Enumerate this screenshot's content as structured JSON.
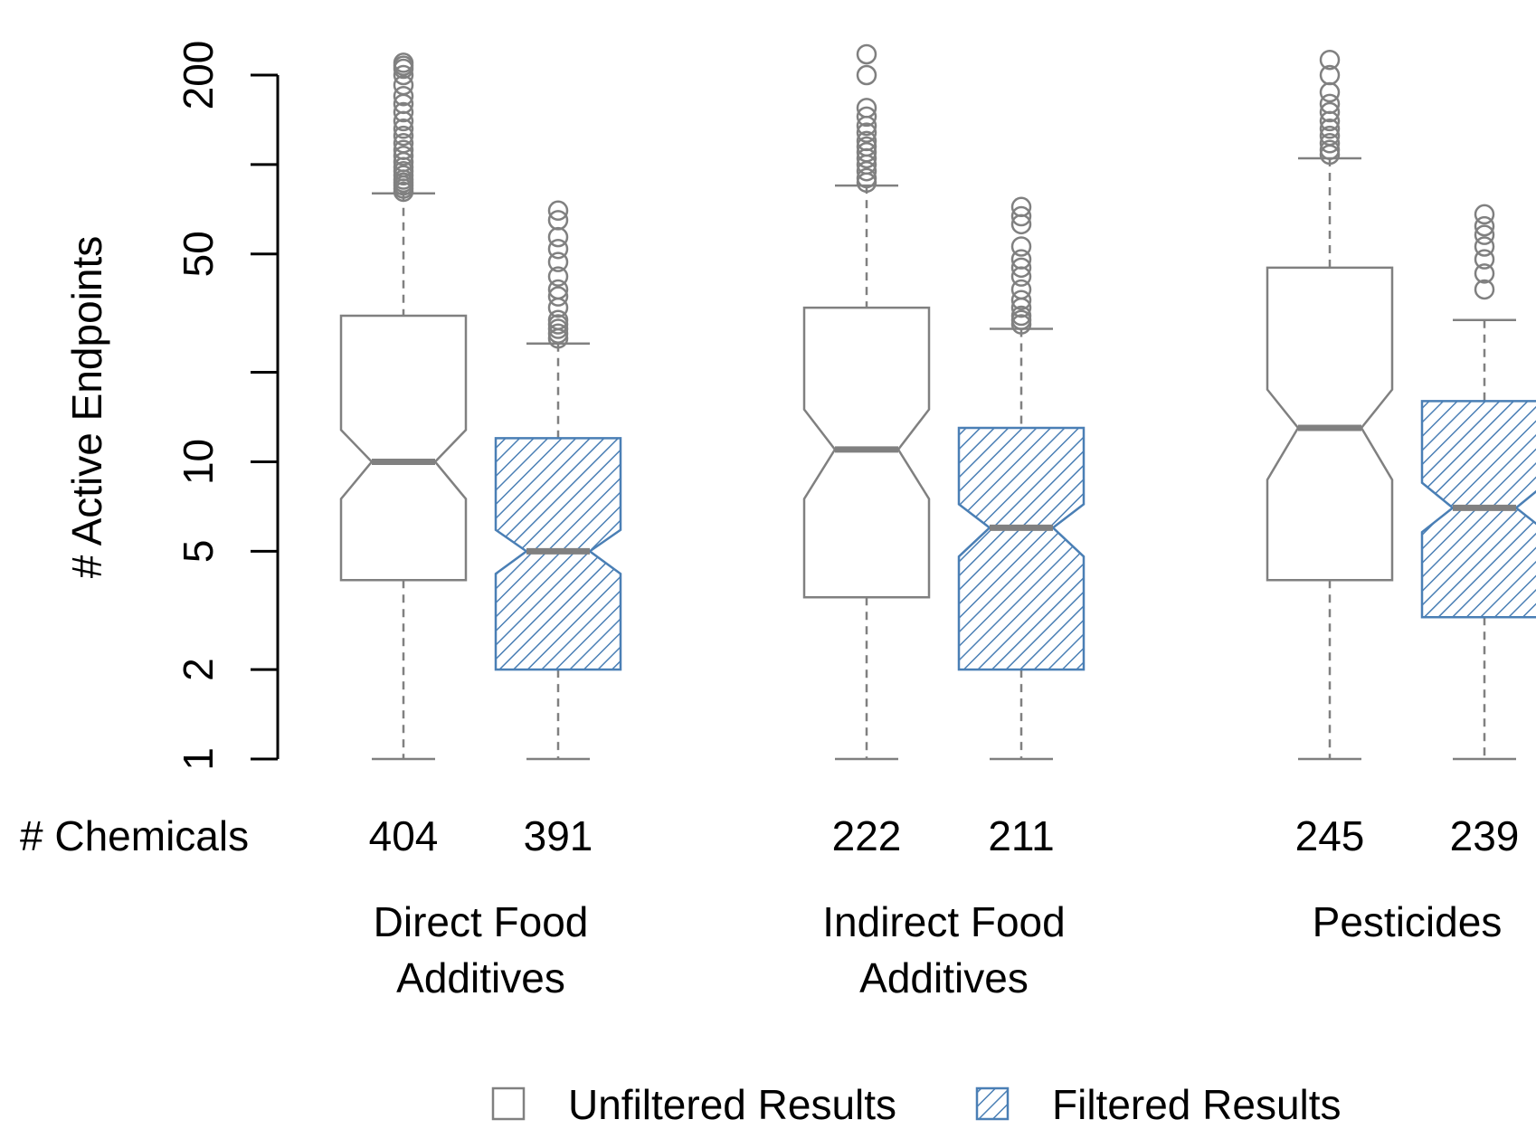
{
  "chart_data": {
    "type": "boxplot",
    "ylabel": "# Active Endpoints",
    "y_scale": "log",
    "ylim": [
      1,
      200
    ],
    "y_ticks": [
      1,
      2,
      5,
      10,
      50,
      200
    ],
    "y_minor_ticks": [
      20,
      100
    ],
    "count_row_label": "# Chemicals",
    "colors": {
      "unfiltered": "#808080",
      "filtered": "#4a7fb5"
    },
    "groups": [
      {
        "label_lines": [
          "Direct Food",
          "Additives"
        ],
        "boxes": [
          {
            "series": "unfiltered",
            "count": "404",
            "min": 1,
            "q1": 4,
            "median": 10,
            "q3": 31,
            "max": 80,
            "notch_low": 7.5,
            "notch_high": 12.8,
            "outliers": [
              81,
              83,
              85,
              87,
              89,
              92,
              95,
              98,
              102,
              107,
              112,
              118,
              125,
              132,
              140,
              150,
              160,
              170,
              185,
              200,
              210,
              215,
              220
            ]
          },
          {
            "series": "filtered",
            "count": "391",
            "min": 1,
            "q1": 2,
            "median": 5,
            "q3": 12,
            "max": 25,
            "notch_low": 4.2,
            "notch_high": 5.9,
            "outliers": [
              26,
              27,
              28,
              29,
              30,
              33,
              36,
              38,
              42,
              47,
              52,
              57,
              65,
              70
            ]
          }
        ]
      },
      {
        "label_lines": [
          "Indirect Food",
          "Additives"
        ],
        "boxes": [
          {
            "series": "unfiltered",
            "count": "222",
            "min": 1,
            "q1": 3.5,
            "median": 11,
            "q3": 33,
            "max": 85,
            "notch_low": 7.5,
            "notch_high": 15,
            "outliers": [
              87,
              90,
              95,
              100,
              105,
              110,
              115,
              120,
              128,
              135,
              145,
              155,
              200,
              235
            ]
          },
          {
            "series": "filtered",
            "count": "211",
            "min": 1,
            "q1": 2,
            "median": 6,
            "q3": 13,
            "max": 28,
            "notch_low": 4.8,
            "notch_high": 7.2,
            "outliers": [
              29,
              30,
              31,
              33,
              35,
              38,
              42,
              45,
              48,
              53,
              63,
              67,
              72
            ]
          }
        ]
      },
      {
        "label_lines": [
          "Pesticides"
        ],
        "boxes": [
          {
            "series": "unfiltered",
            "count": "245",
            "min": 1,
            "q1": 4,
            "median": 13,
            "q3": 45,
            "max": 105,
            "notch_low": 8.7,
            "notch_high": 17.5,
            "outliers": [
              108,
              112,
              118,
              125,
              132,
              140,
              150,
              160,
              175,
              200,
              225
            ]
          },
          {
            "series": "filtered",
            "count": "239",
            "min": 1,
            "q1": 3,
            "median": 7,
            "q3": 16,
            "max": 30,
            "notch_low": 5.8,
            "notch_high": 8.5,
            "outliers": [
              38,
              43,
              48,
              53,
              58,
              62,
              68
            ]
          }
        ]
      }
    ],
    "legend": {
      "placement": "bottom",
      "items": [
        {
          "label": "Unfiltered Results",
          "series": "unfiltered"
        },
        {
          "label": "Filtered Results",
          "series": "filtered"
        }
      ]
    }
  }
}
